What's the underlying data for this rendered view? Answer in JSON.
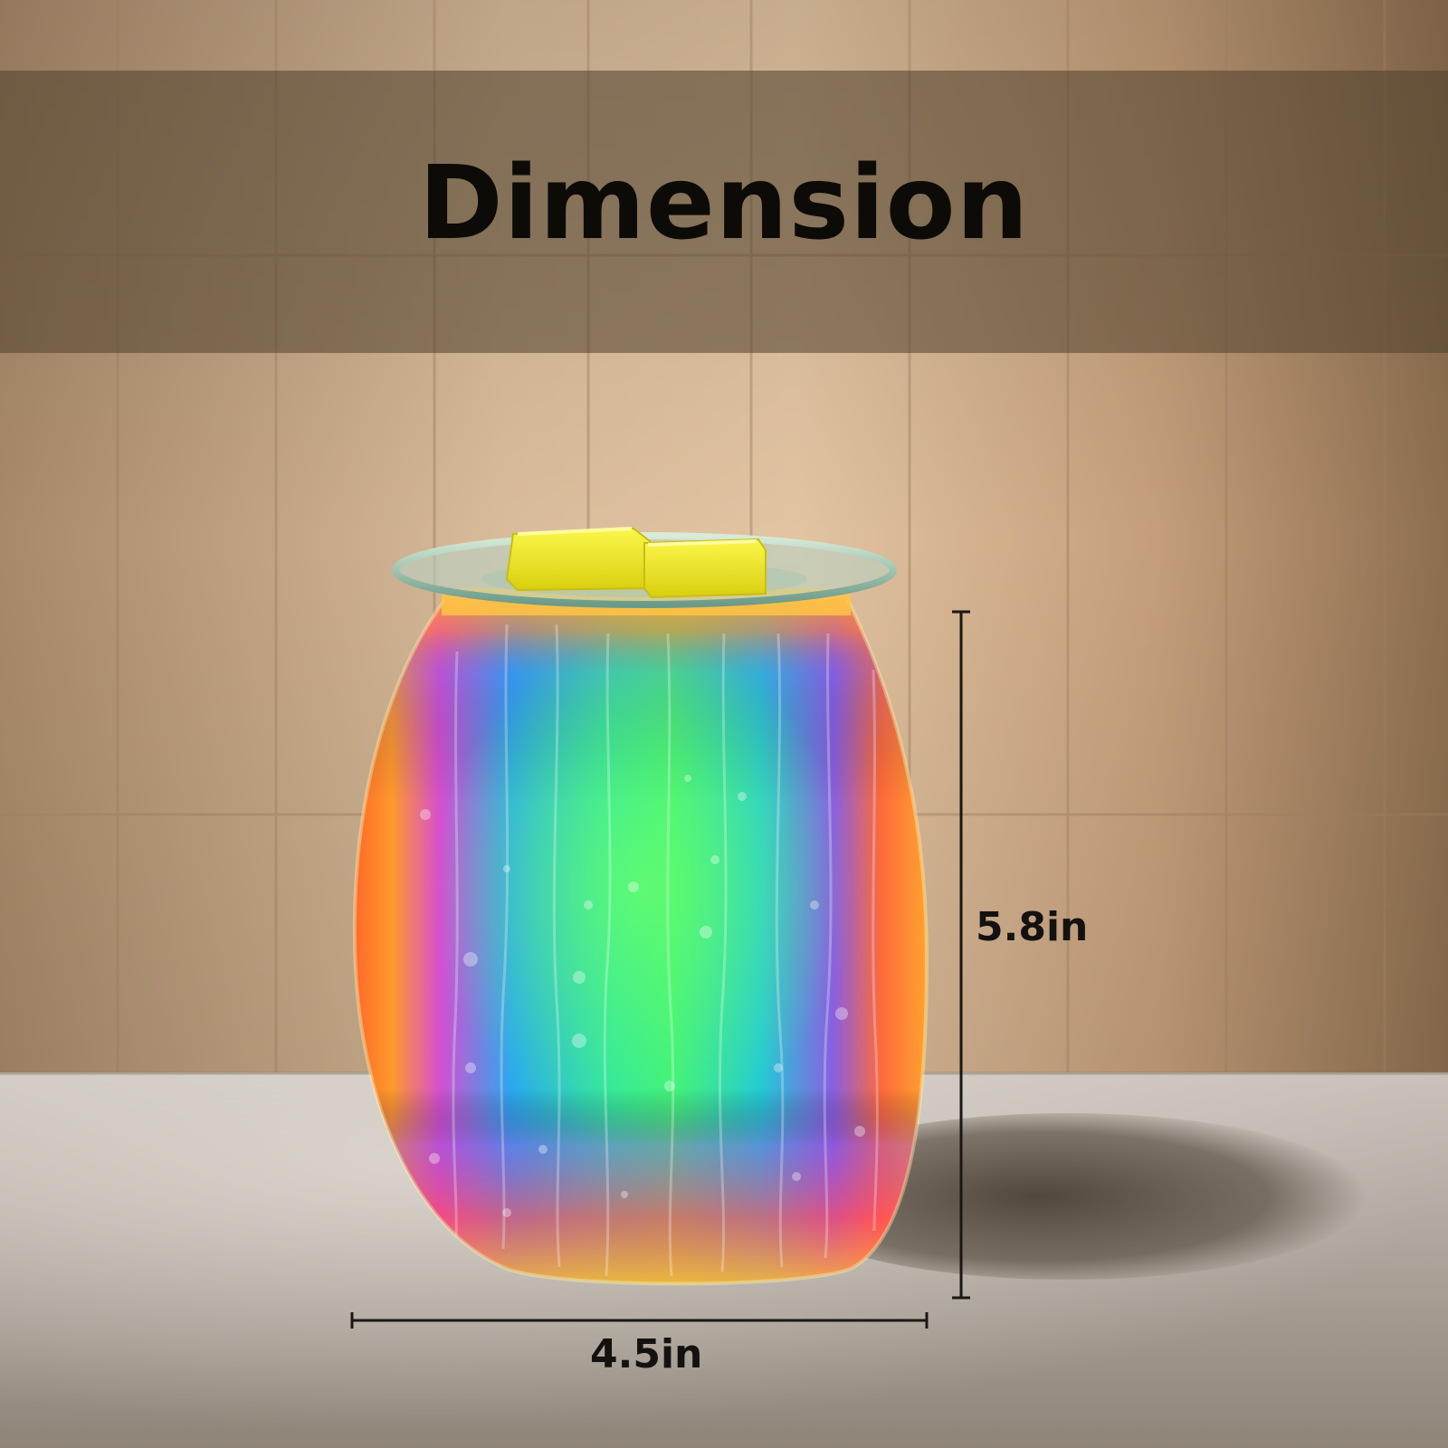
{
  "title": "Dimension",
  "dimensions": {
    "height_label": "5.8in",
    "width_label": "4.5in"
  },
  "product": {
    "name_icon": "wax-warmer-icon",
    "wax_melts_icon": "wax-cube-icon"
  },
  "colors": {
    "background_wall": "#c8a98a",
    "title_band": "#5a4a36",
    "title_text": "#0d0b08",
    "dimension_lines": "#1a1714",
    "wax_cubes": "#f4ef22",
    "glass_center": "#3ef07a",
    "glass_edge": "#ff6a2a"
  }
}
